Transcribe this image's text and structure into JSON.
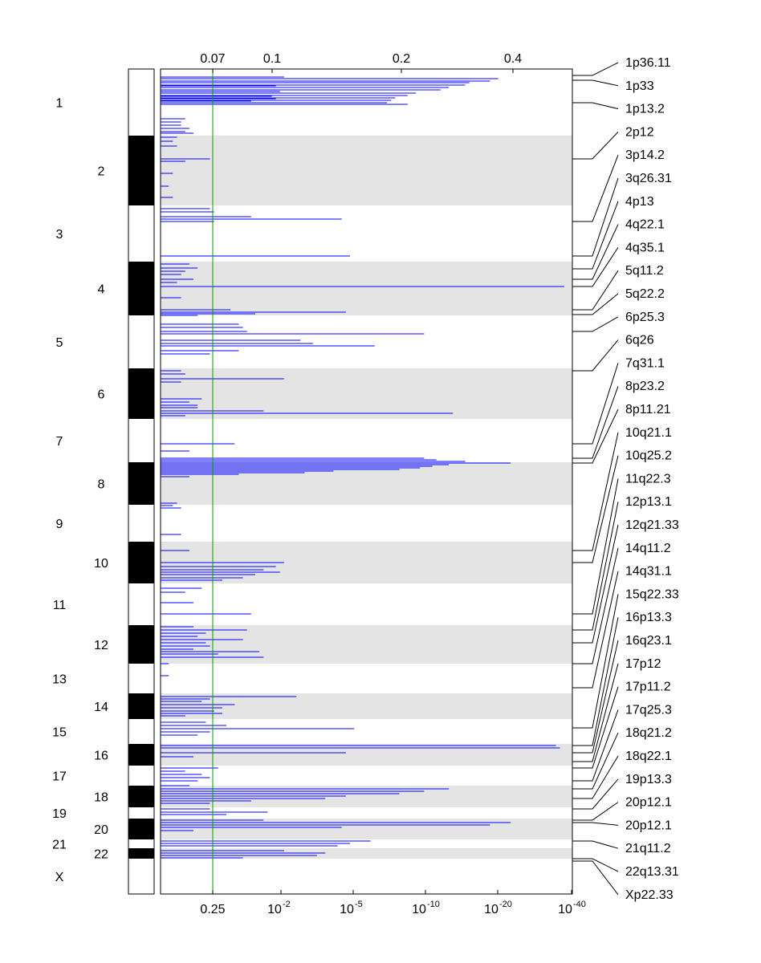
{
  "chart_data": {
    "type": "bar",
    "orientation": "horizontal",
    "title": "",
    "x_scale": "log p-value (q-value axis on top)",
    "bottom_axis": {
      "ticks": [
        {
          "label": "0.25",
          "exp": ""
        },
        {
          "label": "10",
          "exp": "-2"
        },
        {
          "label": "10",
          "exp": "-5"
        },
        {
          "label": "10",
          "exp": "-10"
        },
        {
          "label": "10",
          "exp": "-20"
        },
        {
          "label": "10",
          "exp": "-40"
        }
      ]
    },
    "top_axis": {
      "ticks": [
        "0.07",
        "0.1",
        "0.2",
        "0.4"
      ]
    },
    "threshold_line": {
      "label": "0.25",
      "color": "#00a000"
    },
    "chromosomes": [
      "1",
      "2",
      "3",
      "4",
      "5",
      "6",
      "7",
      "8",
      "9",
      "10",
      "11",
      "12",
      "13",
      "14",
      "15",
      "16",
      "17",
      "18",
      "19",
      "20",
      "21",
      "22",
      "X"
    ],
    "chromosome_spans": [
      [
        0,
        83
      ],
      [
        83,
        170
      ],
      [
        170,
        240
      ],
      [
        240,
        307
      ],
      [
        307,
        373
      ],
      [
        373,
        436
      ],
      [
        436,
        490
      ],
      [
        490,
        543
      ],
      [
        543,
        589
      ],
      [
        589,
        641
      ],
      [
        641,
        693
      ],
      [
        693,
        741
      ],
      [
        741,
        778
      ],
      [
        778,
        810
      ],
      [
        810,
        841
      ],
      [
        841,
        868
      ],
      [
        868,
        893
      ],
      [
        893,
        920
      ],
      [
        920,
        934
      ],
      [
        934,
        960
      ],
      [
        960,
        971
      ],
      [
        971,
        984
      ],
      [
        984,
        1028
      ]
    ],
    "band_color": "#e4e4e4",
    "bar_color": "#0000ff",
    "bars": [
      [
        12,
        0.82
      ],
      [
        15,
        0.8
      ],
      [
        17,
        0.75
      ],
      [
        20,
        0.74
      ],
      [
        23,
        0.7
      ],
      [
        26,
        0.68
      ],
      [
        30,
        0.62
      ],
      [
        33,
        0.6
      ],
      [
        36,
        0.57
      ],
      [
        39,
        0.56
      ],
      [
        42,
        0.55
      ],
      [
        44,
        0.6
      ],
      [
        10,
        0.3
      ],
      [
        21,
        0.28
      ],
      [
        28,
        0.29
      ],
      [
        34,
        0.27
      ],
      [
        37,
        0.28
      ],
      [
        40,
        0.22
      ],
      [
        62,
        0.06
      ],
      [
        66,
        0.05
      ],
      [
        70,
        0.05
      ],
      [
        74,
        0.07
      ],
      [
        78,
        0.06
      ],
      [
        80,
        0.08
      ],
      [
        85,
        0.04
      ],
      [
        90,
        0.03
      ],
      [
        96,
        0.04
      ],
      [
        112,
        0.12
      ],
      [
        115,
        0.06
      ],
      [
        130,
        0.03
      ],
      [
        146,
        0.02
      ],
      [
        160,
        0.03
      ],
      [
        174,
        0.12
      ],
      [
        178,
        0.13
      ],
      [
        184,
        0.22
      ],
      [
        187,
        0.44
      ],
      [
        190,
        0.13
      ],
      [
        233,
        0.46
      ],
      [
        243,
        0.07
      ],
      [
        248,
        0.09
      ],
      [
        252,
        0.06
      ],
      [
        256,
        0.05
      ],
      [
        262,
        0.08
      ],
      [
        266,
        0.04
      ],
      [
        271,
        0.98
      ],
      [
        285,
        0.05
      ],
      [
        300,
        0.17
      ],
      [
        303,
        0.45
      ],
      [
        307,
        0.09
      ],
      [
        305,
        0.23
      ],
      [
        318,
        0.19
      ],
      [
        322,
        0.2
      ],
      [
        327,
        0.21
      ],
      [
        330,
        0.64
      ],
      [
        338,
        0.34
      ],
      [
        342,
        0.37
      ],
      [
        345,
        0.52
      ],
      [
        351,
        0.19
      ],
      [
        355,
        0.12
      ],
      [
        376,
        0.05
      ],
      [
        380,
        0.06
      ],
      [
        386,
        0.3
      ],
      [
        390,
        0.05
      ],
      [
        411,
        0.1
      ],
      [
        415,
        0.07
      ],
      [
        419,
        0.09
      ],
      [
        422,
        0.09
      ],
      [
        426,
        0.25
      ],
      [
        429,
        0.71
      ],
      [
        432,
        0.06
      ],
      [
        467,
        0.18
      ],
      [
        476,
        0.07
      ],
      [
        485,
        0.64
      ],
      [
        487,
        0.67
      ],
      [
        489,
        0.74
      ],
      [
        491,
        0.85
      ],
      [
        493,
        0.7
      ],
      [
        495,
        0.66
      ],
      [
        497,
        0.63
      ],
      [
        499,
        0.58
      ],
      [
        501,
        0.42
      ],
      [
        503,
        0.35
      ],
      [
        505,
        0.19
      ],
      [
        508,
        0.07
      ],
      [
        541,
        0.04
      ],
      [
        544,
        0.03
      ],
      [
        547,
        0.05
      ],
      [
        580,
        0.05
      ],
      [
        600,
        0.07
      ],
      [
        615,
        0.3
      ],
      [
        620,
        0.28
      ],
      [
        624,
        0.25
      ],
      [
        627,
        0.29
      ],
      [
        630,
        0.23
      ],
      [
        634,
        0.2
      ],
      [
        637,
        0.15
      ],
      [
        647,
        0.1
      ],
      [
        652,
        0.06
      ],
      [
        665,
        0.08
      ],
      [
        679,
        0.22
      ],
      [
        695,
        0.08
      ],
      [
        699,
        0.21
      ],
      [
        703,
        0.11
      ],
      [
        707,
        0.09
      ],
      [
        711,
        0.2
      ],
      [
        715,
        0.11
      ],
      [
        719,
        0.12
      ],
      [
        723,
        0.08
      ],
      [
        726,
        0.24
      ],
      [
        729,
        0.14
      ],
      [
        733,
        0.25
      ],
      [
        741,
        0.02
      ],
      [
        756,
        0.02
      ],
      [
        782,
        0.33
      ],
      [
        785,
        0.12
      ],
      [
        788,
        0.1
      ],
      [
        792,
        0.18
      ],
      [
        796,
        0.15
      ],
      [
        800,
        0.13
      ],
      [
        803,
        0.15
      ],
      [
        806,
        0.06
      ],
      [
        814,
        0.11
      ],
      [
        818,
        0.16
      ],
      [
        822,
        0.47
      ],
      [
        826,
        0.12
      ],
      [
        830,
        0.09
      ],
      [
        843,
        0.96
      ],
      [
        846,
        0.97
      ],
      [
        852,
        0.45
      ],
      [
        857,
        0.08
      ],
      [
        871,
        0.14
      ],
      [
        875,
        0.06
      ],
      [
        879,
        0.1
      ],
      [
        883,
        0.12
      ],
      [
        887,
        0.09
      ],
      [
        893,
        0.07
      ],
      [
        897,
        0.7
      ],
      [
        900,
        0.64
      ],
      [
        903,
        0.58
      ],
      [
        906,
        0.45
      ],
      [
        909,
        0.4
      ],
      [
        912,
        0.22
      ],
      [
        915,
        0.12
      ],
      [
        922,
        0.12
      ],
      [
        926,
        0.26
      ],
      [
        929,
        0.16
      ],
      [
        936,
        0.25
      ],
      [
        939,
        0.85
      ],
      [
        942,
        0.8
      ],
      [
        945,
        0.44
      ],
      [
        949,
        0.08
      ],
      [
        962,
        0.51
      ],
      [
        965,
        0.46
      ],
      [
        968,
        0.43
      ],
      [
        974,
        0.3
      ],
      [
        977,
        0.4
      ],
      [
        980,
        0.38
      ],
      [
        983,
        0.2
      ]
    ]
  },
  "band_labels": [
    "1p36.11",
    "1p33",
    "1p13.2",
    "2p12",
    "3p14.2",
    "3q26.31",
    "4p13",
    "4q22.1",
    "4q35.1",
    "5q11.2",
    "5q22.2",
    "6p25.3",
    "6q26",
    "7q31.1",
    "8p23.2",
    "8p11.21",
    "10q21.1",
    "10q25.2",
    "11q22.3",
    "12p13.1",
    "12q21.33",
    "14q11.2",
    "14q31.1",
    "15q22.33",
    "16p13.3",
    "16q23.1",
    "17p12",
    "17p11.2",
    "17q25.3",
    "18q21.2",
    "18q22.1",
    "19p13.3",
    "20p12.1",
    "20p12.1",
    "21q11.2",
    "22q13.31",
    "Xp22.33"
  ],
  "band_peak_positions": [
    8,
    14,
    42,
    112,
    190,
    233,
    249,
    262,
    271,
    300,
    306,
    327,
    376,
    467,
    485,
    491,
    600,
    615,
    679,
    699,
    715,
    741,
    771,
    821,
    843,
    852,
    863,
    871,
    887,
    897,
    909,
    922,
    936,
    939,
    962,
    984,
    987
  ]
}
